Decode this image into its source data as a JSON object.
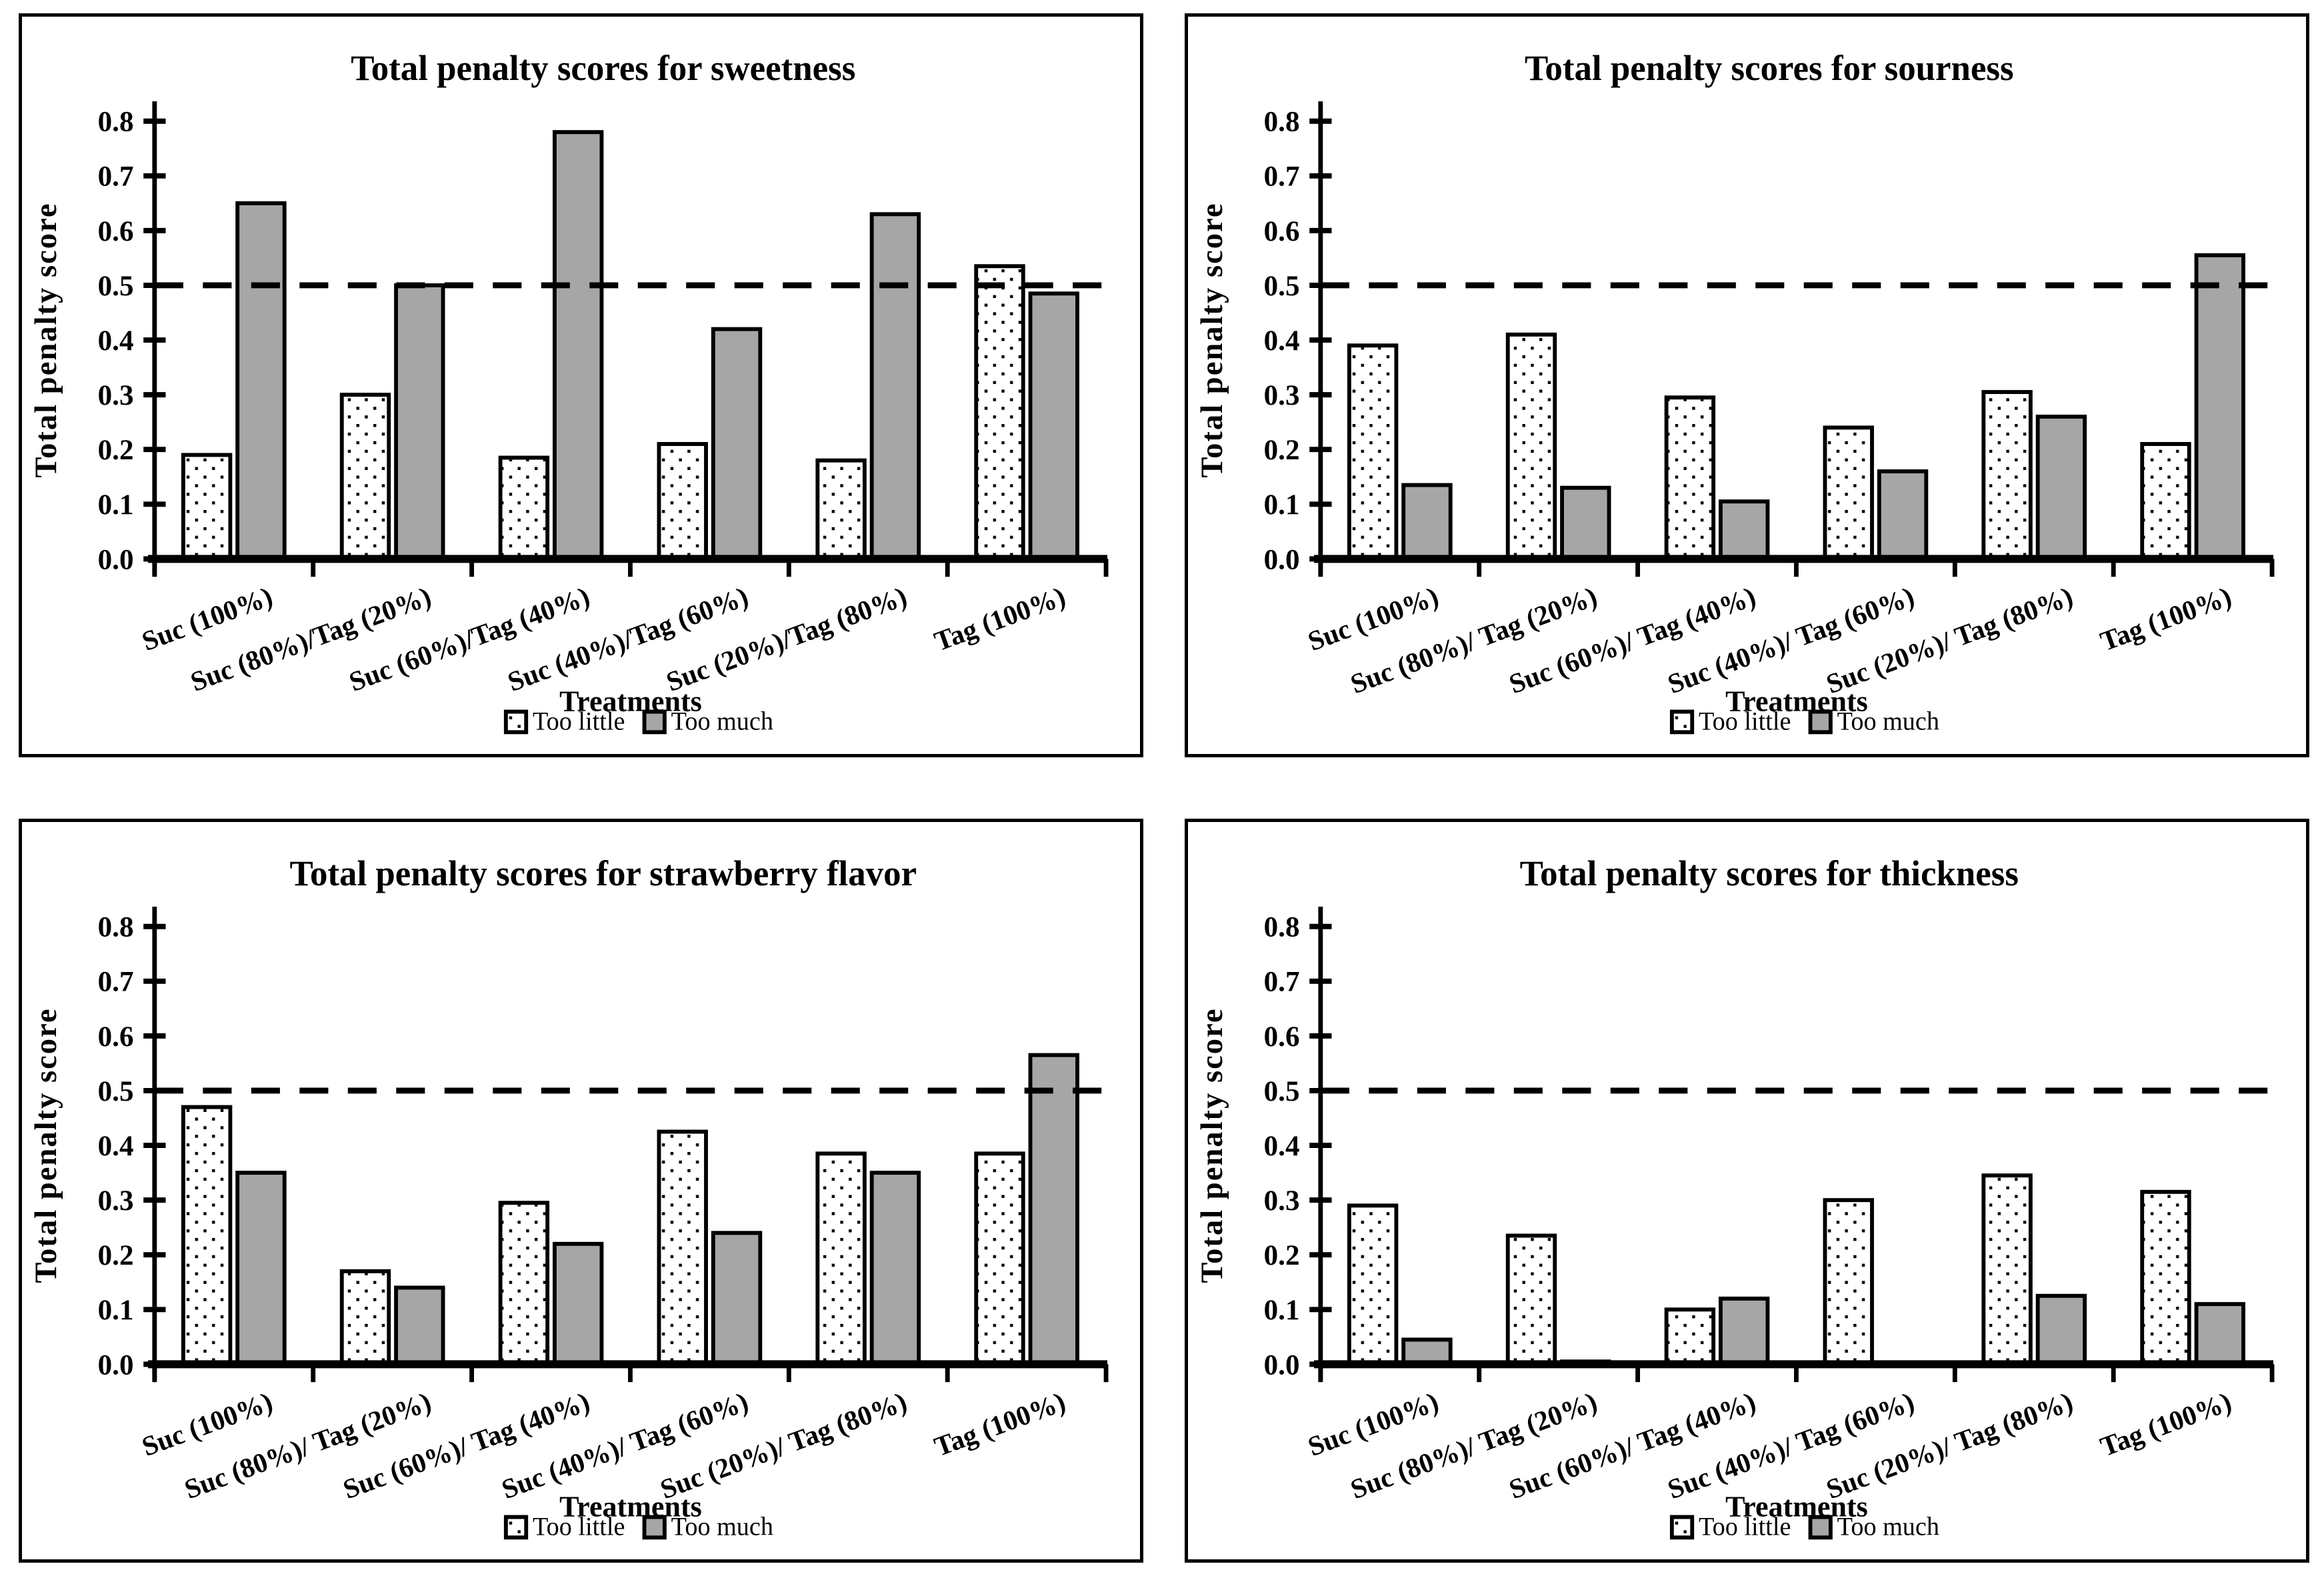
{
  "colors": {
    "background": "#ffffff",
    "frame": "#000000",
    "axis": "#000000",
    "bar_stroke": "#000000",
    "too_little_fill": "#ffffff",
    "too_little_dot": "#000000",
    "too_much_fill": "#a6a6a6",
    "ref_line": "#000000"
  },
  "chart_data": [
    {
      "type": "bar",
      "title": "Total penalty scores for sweetness",
      "xlabel": "Treatments",
      "ylabel": "Total penalty score",
      "ylim": [
        0,
        0.8
      ],
      "ytick_step": 0.1,
      "grid": false,
      "legend_position": "bottom",
      "ref_line": {
        "y": 0.5,
        "style": "dashed"
      },
      "categories": [
        "Suc (100%)",
        "Suc (80%)/Tag (20%)",
        "Suc (60%)/Tag (40%)",
        "Suc (40%)/Tag (60%)",
        "Suc (20%)/Tag (80%)",
        "Tag (100%)"
      ],
      "series": [
        {
          "name": "Too little",
          "style": "dotted-white",
          "values": [
            0.19,
            0.3,
            0.185,
            0.21,
            0.18,
            0.535
          ]
        },
        {
          "name": "Too much",
          "style": "gray",
          "values": [
            0.65,
            0.5,
            0.78,
            0.42,
            0.63,
            0.485
          ]
        }
      ]
    },
    {
      "type": "bar",
      "title": "Total penalty scores for sourness",
      "xlabel": "Treatments",
      "ylabel": "Total penalty score",
      "ylim": [
        0,
        0.8
      ],
      "ytick_step": 0.1,
      "grid": false,
      "legend_position": "bottom",
      "ref_line": {
        "y": 0.5,
        "style": "dashed"
      },
      "categories": [
        "Suc (100%)",
        "Suc (80%)/ Tag (20%)",
        "Suc (60%)/ Tag (40%)",
        "Suc (40%)/ Tag (60%)",
        "Suc (20%)/ Tag (80%)",
        "Tag (100%)"
      ],
      "series": [
        {
          "name": "Too little",
          "style": "dotted-white",
          "values": [
            0.39,
            0.41,
            0.295,
            0.24,
            0.305,
            0.21
          ]
        },
        {
          "name": "Too much",
          "style": "gray",
          "values": [
            0.135,
            0.13,
            0.105,
            0.16,
            0.26,
            0.555
          ]
        }
      ]
    },
    {
      "type": "bar",
      "title": "Total penalty scores for strawberry flavor",
      "xlabel": "Treatments",
      "ylabel": "Total penalty score",
      "ylim": [
        0,
        0.8
      ],
      "ytick_step": 0.1,
      "grid": false,
      "legend_position": "bottom",
      "ref_line": {
        "y": 0.5,
        "style": "dashed"
      },
      "categories": [
        "Suc (100%)",
        "Suc (80%)/ Tag (20%)",
        "Suc (60%)/ Tag (40%)",
        "Suc (40%)/ Tag (60%)",
        "Suc (20%)/ Tag (80%)",
        "Tag (100%)"
      ],
      "series": [
        {
          "name": "Too little",
          "style": "dotted-white",
          "values": [
            0.47,
            0.17,
            0.295,
            0.425,
            0.385,
            0.385
          ]
        },
        {
          "name": "Too much",
          "style": "gray",
          "values": [
            0.35,
            0.14,
            0.22,
            0.24,
            0.35,
            0.565
          ]
        }
      ]
    },
    {
      "type": "bar",
      "title": "Total penalty scores for thickness",
      "xlabel": "Treatments",
      "ylabel": "Total penalty score",
      "ylim": [
        0,
        0.8
      ],
      "ytick_step": 0.1,
      "grid": false,
      "legend_position": "bottom",
      "ref_line": {
        "y": 0.5,
        "style": "dashed"
      },
      "categories": [
        "Suc (100%)",
        "Suc (80%)/ Tag (20%)",
        "Suc (60%)/ Tag (40%)",
        "Suc (40%)/ Tag (60%)",
        "Suc (20%)/ Tag (80%)",
        "Tag (100%)"
      ],
      "series": [
        {
          "name": "Too little",
          "style": "dotted-white",
          "values": [
            0.29,
            0.235,
            0.1,
            0.3,
            0.345,
            0.315
          ]
        },
        {
          "name": "Too much",
          "style": "gray",
          "values": [
            0.045,
            0.005,
            0.12,
            0.0,
            0.125,
            0.11
          ]
        }
      ]
    }
  ]
}
